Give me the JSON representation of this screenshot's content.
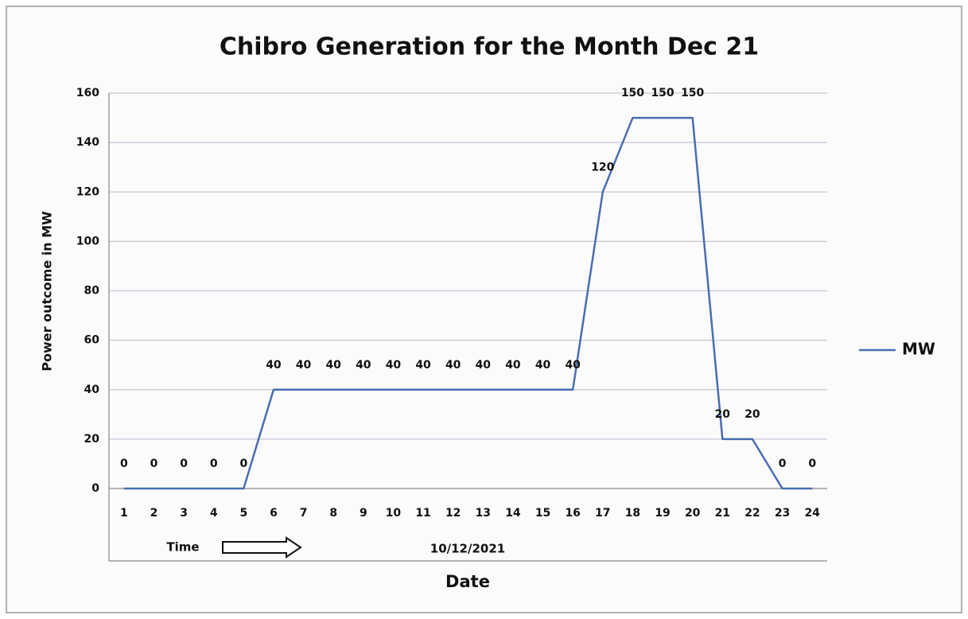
{
  "chart_data": {
    "type": "line",
    "title": "Chibro Generation  for the Month Dec 21",
    "y_label": "Power outcome in MW",
    "x_label": "Date",
    "annotations": [
      "Time",
      "10/12/2021"
    ],
    "categories": [
      "1",
      "2",
      "3",
      "4",
      "5",
      "6",
      "7",
      "8",
      "9",
      "10",
      "11",
      "12",
      "13",
      "14",
      "15",
      "16",
      "17",
      "18",
      "19",
      "20",
      "21",
      "22",
      "23",
      "24"
    ],
    "series": [
      {
        "name": "MW",
        "color": "#4a6db0",
        "values": [
          0,
          0,
          0,
          0,
          0,
          40,
          40,
          40,
          40,
          40,
          40,
          40,
          40,
          40,
          40,
          40,
          120,
          150,
          150,
          150,
          20,
          20,
          0,
          0
        ]
      }
    ],
    "ylim": [
      0,
      160
    ],
    "yticks": [
      0,
      20,
      40,
      60,
      80,
      100,
      120,
      140,
      160
    ],
    "grid": true,
    "legend": "right"
  }
}
